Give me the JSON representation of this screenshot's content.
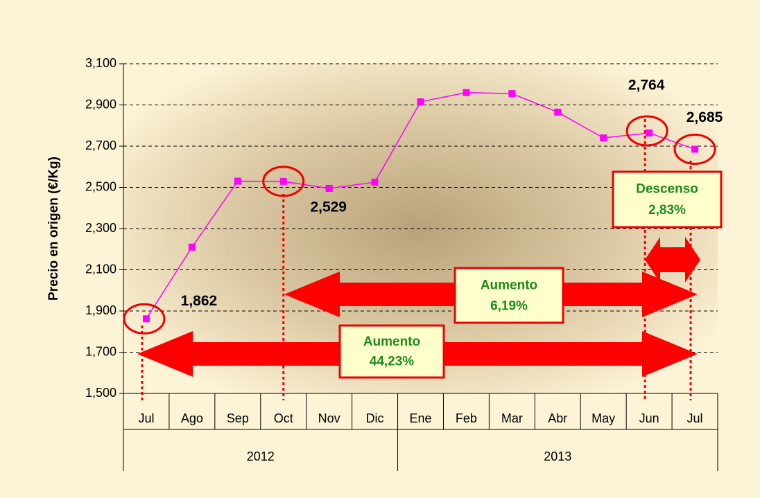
{
  "chart_data": {
    "type": "line",
    "y_label": "Precio en origen (€/Kg)",
    "categories": [
      "Jul",
      "Ago",
      "Sep",
      "Oct",
      "Nov",
      "Dic",
      "Ene",
      "Feb",
      "Mar",
      "Abr",
      "May",
      "Jun",
      "Jul"
    ],
    "groups": [
      {
        "name": "2012",
        "count": 6
      },
      {
        "name": "2013",
        "count": 7
      }
    ],
    "series": [
      {
        "name": "Precio",
        "color": "#ff00ff",
        "values": [
          1.862,
          2.21,
          2.53,
          2.529,
          2.495,
          2.525,
          2.915,
          2.96,
          2.955,
          2.865,
          2.74,
          2.764,
          2.685
        ],
        "value_labels": [
          "1,862",
          null,
          null,
          "2,529",
          null,
          null,
          null,
          null,
          null,
          null,
          null,
          "2,764",
          "2,685"
        ]
      }
    ],
    "ylim": [
      1.5,
      3.1
    ],
    "yticks": [
      {
        "value": 1.5,
        "label": "1,500"
      },
      {
        "value": 1.7,
        "label": "1,700"
      },
      {
        "value": 1.9,
        "label": "1,900"
      },
      {
        "value": 2.1,
        "label": "2,100"
      },
      {
        "value": 2.3,
        "label": "2,300"
      },
      {
        "value": 2.5,
        "label": "2,500"
      },
      {
        "value": 2.7,
        "label": "2,700"
      },
      {
        "value": 2.9,
        "label": "2,900"
      },
      {
        "value": 3.1,
        "label": "3,100"
      }
    ],
    "grid": true,
    "annotations": [
      {
        "title": "Aumento",
        "value": "44,23%"
      },
      {
        "title": "Aumento",
        "value": "6,19%"
      },
      {
        "title": "Descenso",
        "value": "2,83%"
      }
    ]
  }
}
